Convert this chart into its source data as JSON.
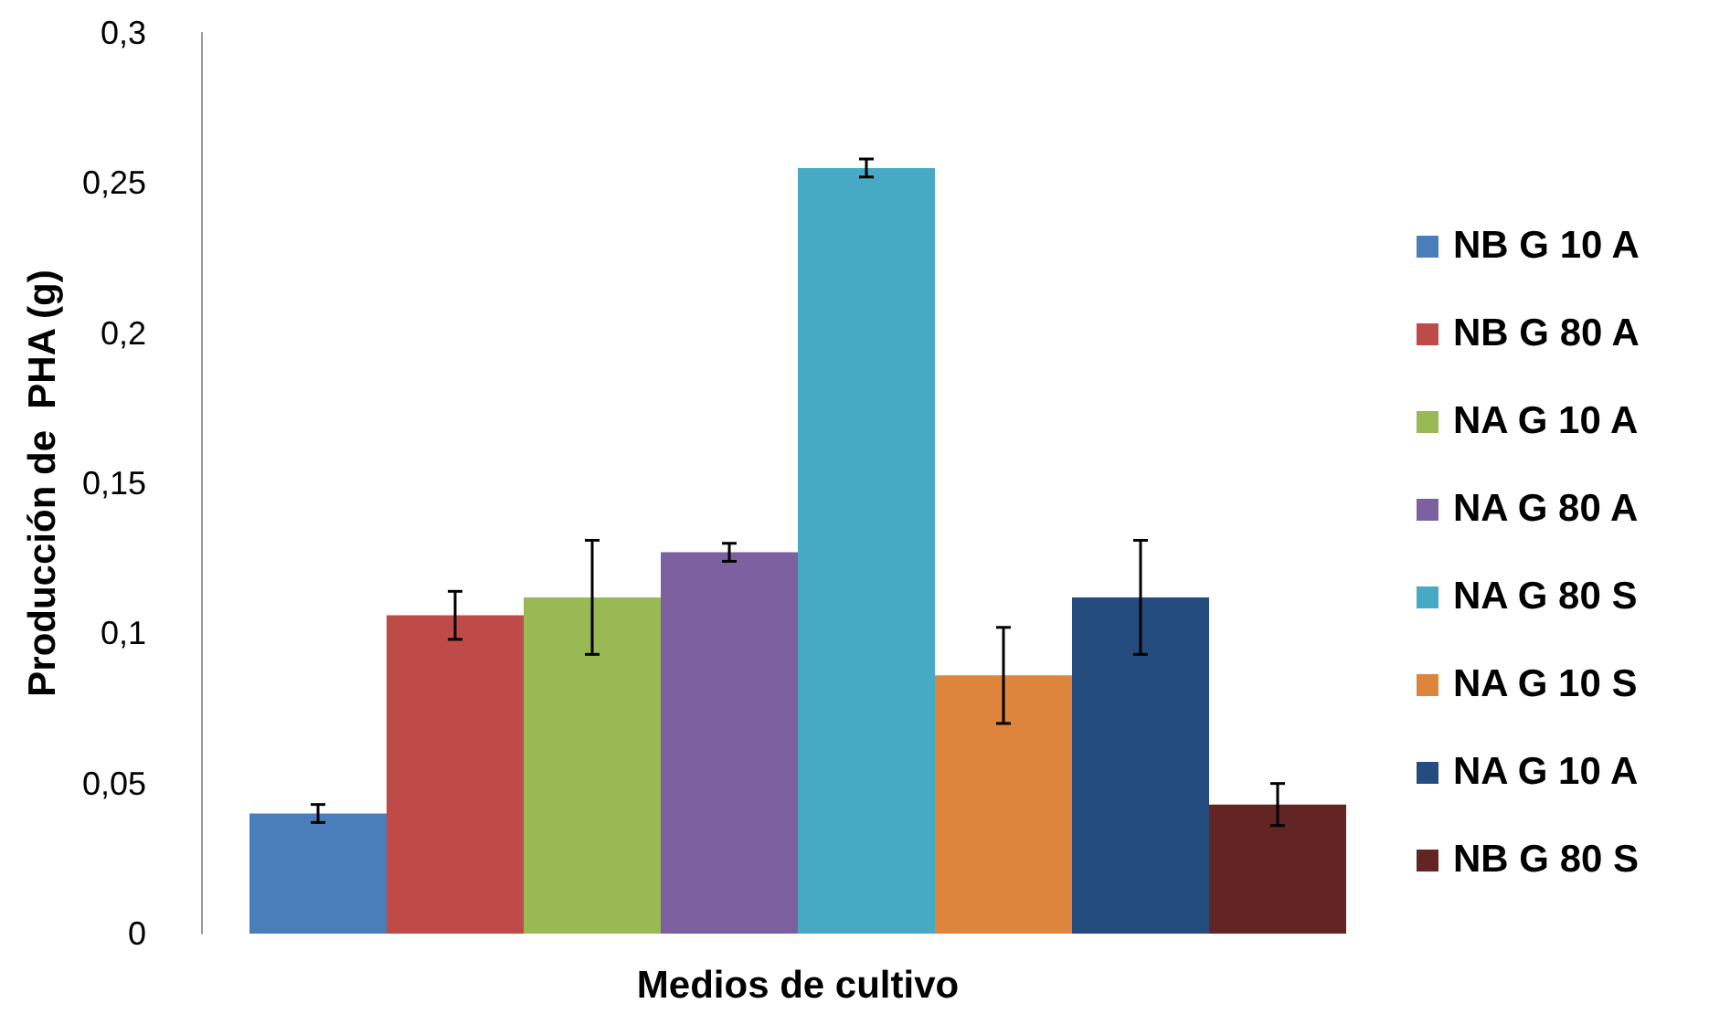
{
  "chart_data": {
    "type": "bar",
    "xlabel": "Medios de cultivo",
    "ylabel": "Producción de  PHA (g)",
    "categories": [
      null
    ],
    "series": [
      {
        "name": "NB G 10 A",
        "color": "#4a7ebb",
        "values": [
          0.04
        ],
        "errors": [
          0.003
        ]
      },
      {
        "name": "NB G 80 A",
        "color": "#be4b48",
        "values": [
          0.106
        ],
        "errors": [
          0.008
        ]
      },
      {
        "name": "NA G 10 A",
        "color": "#98b954",
        "values": [
          0.112
        ],
        "errors": [
          0.019
        ]
      },
      {
        "name": "NA G 80 A",
        "color": "#7d60a0",
        "values": [
          0.127
        ],
        "errors": [
          0.003
        ]
      },
      {
        "name": "NA G 80 S",
        "color": "#46aac5",
        "values": [
          0.255
        ],
        "errors": [
          0.003
        ]
      },
      {
        "name": "NA G 10 S",
        "color": "#dd843d",
        "values": [
          0.086
        ],
        "errors": [
          0.016
        ]
      },
      {
        "name": "NA G 10 A",
        "color": "#244c7e",
        "values": [
          0.112
        ],
        "errors": [
          0.019
        ]
      },
      {
        "name": "NB G 80 S",
        "color": "#632523",
        "values": [
          0.043
        ],
        "errors": [
          0.007
        ]
      }
    ],
    "ylim": [
      0,
      0.3
    ],
    "yticks": [
      {
        "value": 0,
        "label": "0"
      },
      {
        "value": 0.05,
        "label": "0,05"
      },
      {
        "value": 0.1,
        "label": "0,1"
      },
      {
        "value": 0.15,
        "label": "0,15"
      },
      {
        "value": 0.2,
        "label": "0,2"
      },
      {
        "value": 0.25,
        "label": "0,25"
      },
      {
        "value": 0.3,
        "label": "0,3"
      }
    ],
    "grid": false,
    "legend": "right"
  }
}
